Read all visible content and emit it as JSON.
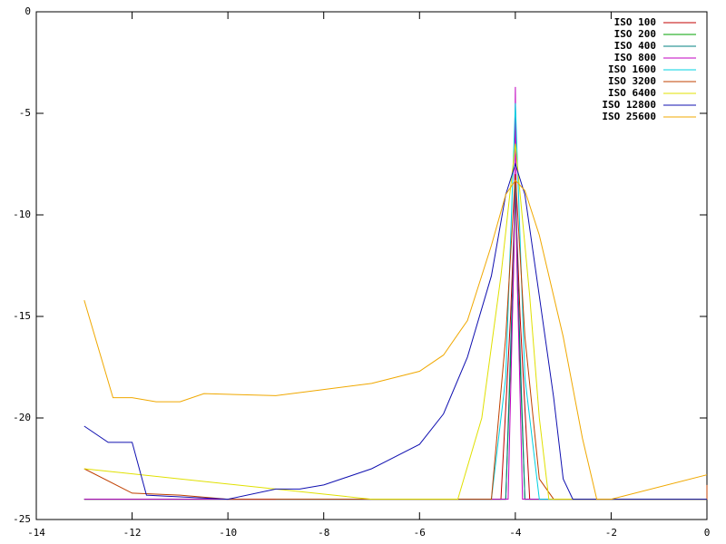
{
  "chart_data": {
    "type": "line",
    "xlim": [
      -14,
      0
    ],
    "ylim": [
      -25,
      0
    ],
    "xticks": [
      -14,
      -12,
      -10,
      -8,
      -6,
      -4,
      -2,
      0
    ],
    "yticks": [
      -25,
      -20,
      -15,
      -10,
      -5,
      0
    ],
    "legend": "top-right",
    "series": [
      {
        "name": "ISO 100",
        "color": "#c00000",
        "x": [
          -13,
          -4.3,
          -4.1,
          -4,
          -3.9,
          -3.7,
          0
        ],
        "values": [
          -24,
          -24,
          -15,
          -9,
          -15,
          -24,
          -24
        ]
      },
      {
        "name": "ISO 200",
        "color": "#00a000",
        "x": [
          -13,
          -4.2,
          -4.05,
          -4,
          -3.95,
          -3.8,
          0
        ],
        "values": [
          -24,
          -24,
          -14,
          -8.5,
          -14,
          -24,
          -24
        ]
      },
      {
        "name": "ISO 400",
        "color": "#008080",
        "x": [
          -13,
          -4.2,
          -4.05,
          -4,
          -3.95,
          -3.8,
          0
        ],
        "values": [
          -24,
          -24,
          -13,
          -8,
          -13,
          -24,
          -24
        ]
      },
      {
        "name": "ISO 800",
        "color": "#c000c0",
        "x": [
          -13,
          -4.15,
          -4.03,
          -4,
          -3.97,
          -3.85,
          0
        ],
        "values": [
          -24,
          -24,
          -12,
          -3.7,
          -12,
          -24,
          -24
        ]
      },
      {
        "name": "ISO 1600",
        "color": "#00d0e0",
        "x": [
          -9,
          -4.5,
          -4.2,
          -4,
          -3.8,
          -3.5,
          0
        ],
        "values": [
          -24,
          -24,
          -18,
          -4.5,
          -18,
          -24,
          -24
        ]
      },
      {
        "name": "ISO 3200",
        "color": "#c04000",
        "x": [
          -13,
          -12,
          -11,
          -10,
          -4.5,
          -4.2,
          -4,
          -3.8,
          -3.5,
          -3.2,
          0,
          0
        ],
        "values": [
          -22.5,
          -23.7,
          -23.8,
          -24,
          -24,
          -16,
          -8,
          -16,
          -23,
          -24,
          -24,
          -23.3
        ]
      },
      {
        "name": "ISO 6400",
        "color": "#e0e000",
        "x": [
          -13,
          -7,
          -5.2,
          -4.7,
          -4.3,
          -4,
          -3.7,
          -3.5,
          -3.3,
          0
        ],
        "values": [
          -22.5,
          -24,
          -24,
          -20,
          -13,
          -6.5,
          -14,
          -20,
          -24,
          -24
        ]
      },
      {
        "name": "ISO 12800",
        "color": "#1010b0",
        "x": [
          -13,
          -12.5,
          -12,
          -11.7,
          -10,
          -9,
          -8.5,
          -8,
          -7,
          -6,
          -5.5,
          -5,
          -4.5,
          -4.2,
          -4,
          -3.8,
          -3.5,
          -3.2,
          -3,
          -2.8,
          0
        ],
        "values": [
          -20.4,
          -21.2,
          -21.2,
          -23.8,
          -24,
          -23.5,
          -23.5,
          -23.3,
          -22.5,
          -21.3,
          -19.8,
          -17,
          -13,
          -9,
          -7.5,
          -9,
          -14,
          -19,
          -23,
          -24,
          -24
        ]
      },
      {
        "name": "ISO 25600",
        "color": "#f0a800",
        "x": [
          -13,
          -12.4,
          -12,
          -11.5,
          -11,
          -10.5,
          -9,
          -8,
          -7,
          -6,
          -5.5,
          -5,
          -4.5,
          -4.2,
          -4,
          -3.8,
          -3.5,
          -3,
          -2.6,
          -2.3,
          -2,
          0
        ],
        "values": [
          -14.2,
          -19,
          -19,
          -19.2,
          -19.2,
          -18.8,
          -18.9,
          -18.6,
          -18.3,
          -17.7,
          -16.9,
          -15.2,
          -11.5,
          -9,
          -8.3,
          -8.8,
          -11,
          -16,
          -21,
          -24,
          -24,
          -22.8
        ]
      }
    ]
  }
}
